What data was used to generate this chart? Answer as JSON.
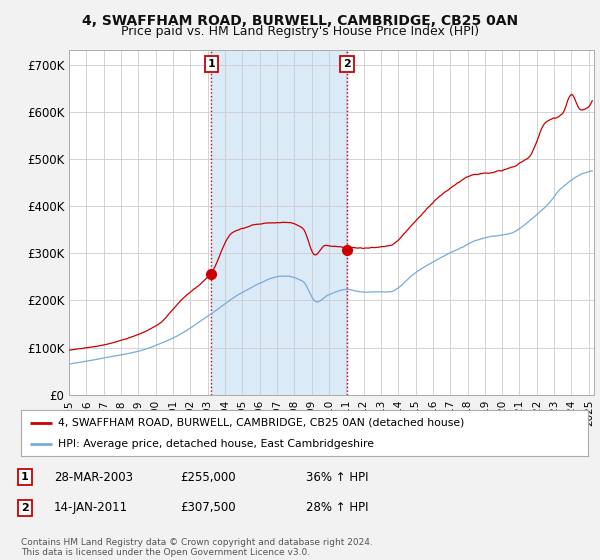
{
  "title": "4, SWAFFHAM ROAD, BURWELL, CAMBRIDGE, CB25 0AN",
  "subtitle": "Price paid vs. HM Land Registry's House Price Index (HPI)",
  "title_fontsize": 10,
  "subtitle_fontsize": 9,
  "ylabel_ticks": [
    "£0",
    "£100K",
    "£200K",
    "£300K",
    "£400K",
    "£500K",
    "£600K",
    "£700K"
  ],
  "ytick_vals": [
    0,
    100000,
    200000,
    300000,
    400000,
    500000,
    600000,
    700000
  ],
  "ylim": [
    0,
    730000
  ],
  "xlim_start": 1995.0,
  "xlim_end": 2025.3,
  "plot_bg": "#ffffff",
  "fig_bg": "#f2f2f2",
  "grid_color": "#cccccc",
  "span_color": "#dbeaf7",
  "line1_color": "#cc0000",
  "line2_color": "#7aaadd",
  "vline_color": "#cc0000",
  "marker1_x": 2003.22,
  "marker1_y": 255000,
  "marker2_x": 2011.04,
  "marker2_y": 307500,
  "legend_line1": "4, SWAFFHAM ROAD, BURWELL, CAMBRIDGE, CB25 0AN (detached house)",
  "legend_line2": "HPI: Average price, detached house, East Cambridgeshire",
  "annotation1_date": "28-MAR-2003",
  "annotation1_price": "£255,000",
  "annotation1_hpi": "36% ↑ HPI",
  "annotation2_date": "14-JAN-2011",
  "annotation2_price": "£307,500",
  "annotation2_hpi": "28% ↑ HPI",
  "footer": "Contains HM Land Registry data © Crown copyright and database right 2024.\nThis data is licensed under the Open Government Licence v3.0."
}
